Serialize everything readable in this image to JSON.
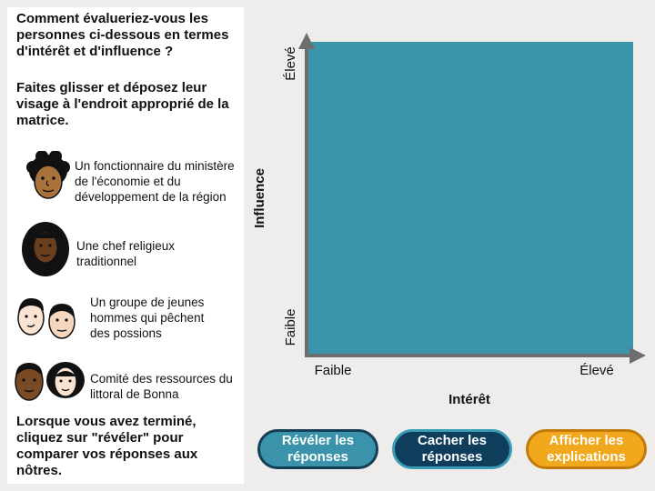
{
  "instructions": {
    "question": "Comment évalueriez-vous les personnes ci-dessous en termes d'intérêt et d'influence ?",
    "drag_hint": "Faites glisser et déposez leur visage à l'endroit approprié de la matrice.",
    "finish_hint": "Lorsque vous avez terminé, cliquez sur \"révéler\" pour comparer vos réponses aux nôtres."
  },
  "stakeholders": [
    {
      "label": "Un fonctionnaire du ministère de l'économie et du développement de la région"
    },
    {
      "label": "Une chef religieux traditionnel"
    },
    {
      "label": "Un groupe de jeunes hommes qui pêchent des possions"
    },
    {
      "label": "Comité des ressources du littoral de Bonna"
    }
  ],
  "matrix": {
    "y_axis_label": "Influence",
    "x_axis_label": "Intérêt",
    "y_high": "Élevé",
    "y_low": "Faible",
    "x_low": "Faible",
    "x_high": "Élevé",
    "fill_color": "#3a95ab"
  },
  "buttons": {
    "reveal": "Révéler les réponses",
    "hide": "Cacher les réponses",
    "explain": "Afficher les explications"
  }
}
